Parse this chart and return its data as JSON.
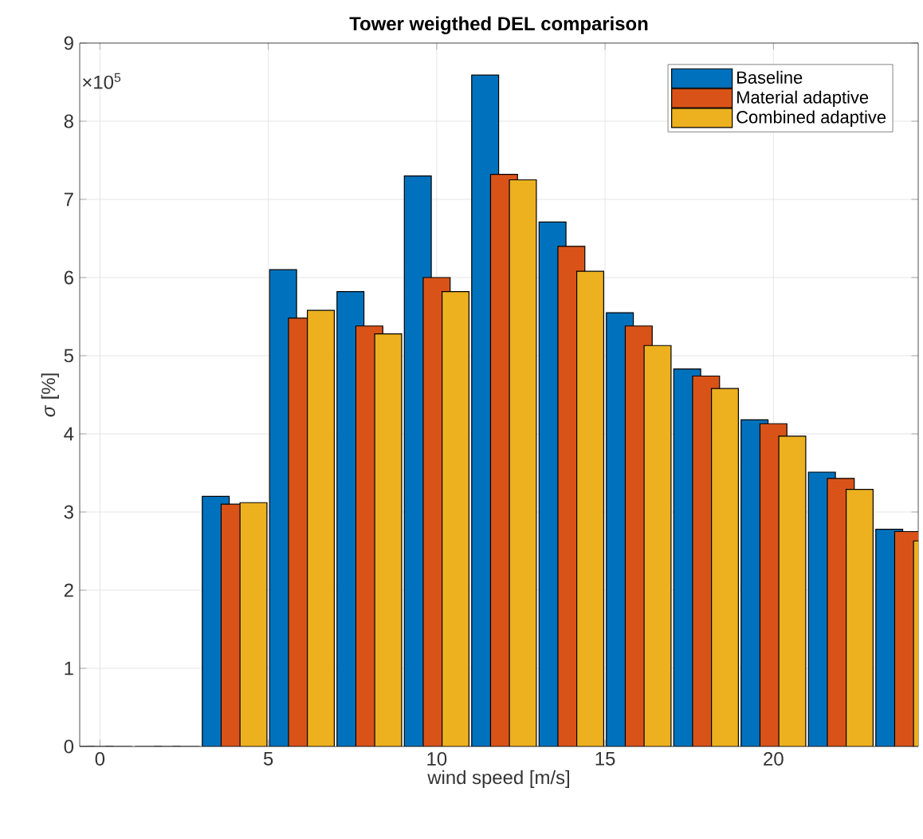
{
  "chart_data": {
    "type": "bar",
    "title": "Tower weigthed DEL comparison",
    "xlabel": "wind speed [m/s]",
    "ylabel": "*σ* [%]",
    "annotations": [
      "×10$^{5}$"
    ],
    "x": [
      0,
      2,
      4,
      6,
      8,
      10,
      12,
      14,
      16,
      18,
      20,
      22,
      24
    ],
    "series": [
      {
        "name": "Baseline",
        "color": "#0072bd",
        "values": [
          0,
          0,
          3.2,
          6.1,
          5.82,
          7.3,
          8.59,
          6.71,
          5.55,
          4.83,
          4.18,
          3.51,
          2.78
        ]
      },
      {
        "name": "Material adaptive",
        "color": "#d95319",
        "values": [
          0,
          0,
          3.1,
          5.48,
          5.38,
          6.0,
          7.32,
          6.4,
          5.38,
          4.74,
          4.13,
          3.43,
          2.75
        ]
      },
      {
        "name": "Combined adaptive",
        "color": "#edb120",
        "values": [
          0,
          0,
          3.12,
          5.58,
          5.28,
          5.82,
          7.25,
          6.08,
          5.13,
          4.58,
          3.97,
          3.29,
          2.63
        ]
      }
    ],
    "xlim": [
      -0.6,
      24.3
    ],
    "ylim": [
      0,
      9
    ],
    "xticks": [
      0,
      5,
      10,
      15,
      20
    ],
    "yticks": [
      0,
      1,
      2,
      3,
      4,
      5,
      6,
      7,
      8,
      9
    ],
    "grid": true,
    "legend": "top right"
  }
}
